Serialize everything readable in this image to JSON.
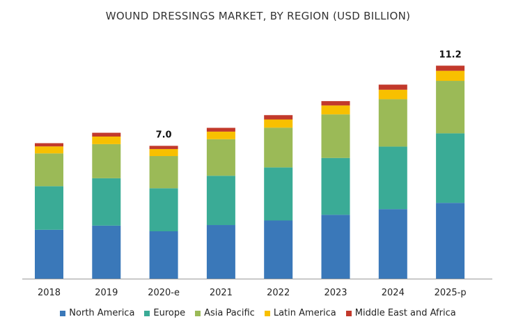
{
  "chart_data": {
    "type": "bar",
    "stacked": true,
    "title": "WOUND DRESSINGS MARKET, BY REGION (USD BILLION)",
    "xlabel": "",
    "ylabel": "",
    "ylim": [
      0,
      12
    ],
    "grid": false,
    "legend_position": "bottom",
    "categories": [
      "2018",
      "2019",
      "2020-e",
      "2021",
      "2022",
      "2023",
      "2024",
      "2025-p"
    ],
    "series": [
      {
        "name": "North America",
        "color": "#3A78B9",
        "values": [
          2.58,
          2.8,
          2.5,
          2.83,
          3.07,
          3.37,
          3.67,
          4.0
        ]
      },
      {
        "name": "Europe",
        "color": "#3AAB96",
        "values": [
          2.3,
          2.5,
          2.27,
          2.6,
          2.8,
          3.0,
          3.3,
          3.67
        ]
      },
      {
        "name": "Asia Pacific",
        "color": "#9BBA57",
        "values": [
          1.73,
          1.8,
          1.7,
          1.93,
          2.1,
          2.3,
          2.5,
          2.77
        ]
      },
      {
        "name": "Latin America",
        "color": "#F8C000",
        "values": [
          0.37,
          0.4,
          0.37,
          0.4,
          0.43,
          0.47,
          0.5,
          0.53
        ]
      },
      {
        "name": "Middle East and Africa",
        "color": "#C2392B",
        "values": [
          0.17,
          0.2,
          0.17,
          0.2,
          0.23,
          0.23,
          0.27,
          0.27
        ]
      }
    ],
    "data_labels": [
      {
        "category": "2020-e",
        "text": "7.0"
      },
      {
        "category": "2025-p",
        "text": "11.2"
      }
    ]
  }
}
